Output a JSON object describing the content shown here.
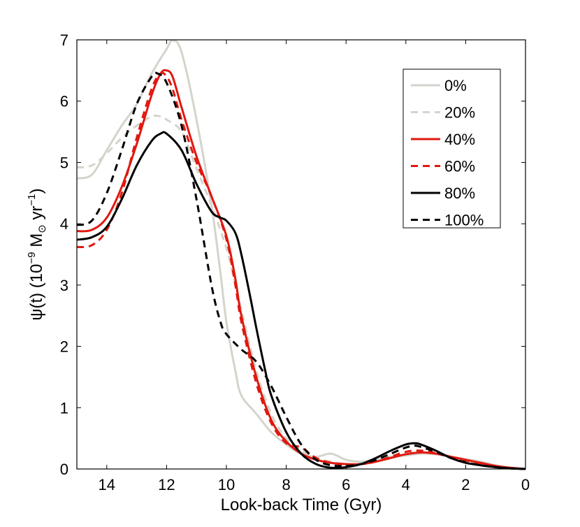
{
  "chart_data": {
    "type": "line",
    "title": "",
    "xlabel": "Look-back Time (Gyr)",
    "ylabel_parts": {
      "psi": "ψ(t) (10",
      "exp1": "−9",
      "mid": " M",
      "sun": "⊙",
      "unit": " yr",
      "exp2": "−1",
      "close": ")"
    },
    "xlim": [
      15,
      0
    ],
    "ylim": [
      0,
      7
    ],
    "x_reversed": true,
    "xticks": [
      14,
      12,
      10,
      8,
      6,
      4,
      2,
      0
    ],
    "yticks": [
      0,
      1,
      2,
      3,
      4,
      5,
      6,
      7
    ],
    "legend_position": "top-right",
    "series": [
      {
        "name": "0%",
        "color": "#d4d4cc",
        "dash": "solid",
        "points": [
          [
            15,
            4.74
          ],
          [
            14.5,
            4.8
          ],
          [
            14,
            5.2
          ],
          [
            13.5,
            5.6
          ],
          [
            13,
            5.95
          ],
          [
            12.5,
            6.45
          ],
          [
            12,
            6.85
          ],
          [
            11.8,
            6.99
          ],
          [
            11.5,
            6.8
          ],
          [
            11,
            5.7
          ],
          [
            10.5,
            4.3
          ],
          [
            10.2,
            3.2
          ],
          [
            10,
            2.4
          ],
          [
            9.7,
            1.6
          ],
          [
            9.5,
            1.2
          ],
          [
            9,
            0.9
          ],
          [
            8.5,
            0.6
          ],
          [
            8,
            0.4
          ],
          [
            7.5,
            0.25
          ],
          [
            7,
            0.2
          ],
          [
            6.5,
            0.25
          ],
          [
            6,
            0.15
          ],
          [
            5.5,
            0.12
          ],
          [
            5,
            0.16
          ],
          [
            4.5,
            0.2
          ],
          [
            4,
            0.22
          ],
          [
            3.5,
            0.25
          ],
          [
            3,
            0.24
          ],
          [
            2.5,
            0.2
          ],
          [
            2,
            0.16
          ],
          [
            1.5,
            0.12
          ],
          [
            1,
            0.06
          ],
          [
            0.5,
            0.02
          ],
          [
            0,
            0.0
          ]
        ]
      },
      {
        "name": "20%",
        "color": "#d4d4cc",
        "dash": "dashed",
        "points": [
          [
            15,
            4.92
          ],
          [
            14.5,
            4.95
          ],
          [
            14,
            5.15
          ],
          [
            13.5,
            5.4
          ],
          [
            13,
            5.6
          ],
          [
            12.5,
            5.75
          ],
          [
            12.2,
            5.75
          ],
          [
            12,
            5.7
          ],
          [
            11.5,
            5.5
          ],
          [
            11,
            4.9
          ],
          [
            10.5,
            4.3
          ],
          [
            10,
            3.6
          ],
          [
            9.7,
            3.0
          ],
          [
            9.5,
            2.6
          ],
          [
            9,
            1.6
          ],
          [
            8.5,
            0.9
          ],
          [
            8,
            0.5
          ],
          [
            7.5,
            0.3
          ],
          [
            7,
            0.18
          ],
          [
            6.5,
            0.12
          ],
          [
            6,
            0.08
          ],
          [
            5.5,
            0.08
          ],
          [
            5,
            0.12
          ],
          [
            4.5,
            0.18
          ],
          [
            4,
            0.25
          ],
          [
            3.5,
            0.27
          ],
          [
            3,
            0.24
          ],
          [
            2.5,
            0.2
          ],
          [
            2,
            0.15
          ],
          [
            1.5,
            0.1
          ],
          [
            1,
            0.05
          ],
          [
            0.5,
            0.02
          ],
          [
            0,
            0.0
          ]
        ]
      },
      {
        "name": "40%",
        "color": "#e0180f",
        "dash": "solid",
        "points": [
          [
            15,
            3.88
          ],
          [
            14.5,
            3.9
          ],
          [
            14,
            4.1
          ],
          [
            13.5,
            4.6
          ],
          [
            13,
            5.3
          ],
          [
            12.5,
            6.1
          ],
          [
            12.2,
            6.45
          ],
          [
            12,
            6.5
          ],
          [
            11.8,
            6.4
          ],
          [
            11.5,
            5.9
          ],
          [
            11,
            5.1
          ],
          [
            10.5,
            4.45
          ],
          [
            10,
            3.8
          ],
          [
            9.7,
            3.1
          ],
          [
            9.5,
            2.5
          ],
          [
            9,
            1.5
          ],
          [
            8.5,
            0.8
          ],
          [
            8,
            0.45
          ],
          [
            7.5,
            0.25
          ],
          [
            7,
            0.15
          ],
          [
            6.5,
            0.1
          ],
          [
            6,
            0.08
          ],
          [
            5.5,
            0.08
          ],
          [
            5,
            0.12
          ],
          [
            4.5,
            0.18
          ],
          [
            4,
            0.24
          ],
          [
            3.5,
            0.27
          ],
          [
            3,
            0.25
          ],
          [
            2.5,
            0.2
          ],
          [
            2,
            0.15
          ],
          [
            1.5,
            0.1
          ],
          [
            1,
            0.05
          ],
          [
            0.5,
            0.02
          ],
          [
            0,
            0.0
          ]
        ]
      },
      {
        "name": "60%",
        "color": "#e0180f",
        "dash": "dashed",
        "points": [
          [
            15,
            3.62
          ],
          [
            14.5,
            3.65
          ],
          [
            14,
            3.9
          ],
          [
            13.5,
            4.5
          ],
          [
            13,
            5.4
          ],
          [
            12.5,
            6.2
          ],
          [
            12.2,
            6.45
          ],
          [
            12,
            6.4
          ],
          [
            11.8,
            6.2
          ],
          [
            11.5,
            5.7
          ],
          [
            11,
            5.0
          ],
          [
            10.5,
            4.45
          ],
          [
            10,
            3.75
          ],
          [
            9.7,
            3.0
          ],
          [
            9.5,
            2.4
          ],
          [
            9,
            1.4
          ],
          [
            8.5,
            0.75
          ],
          [
            8,
            0.42
          ],
          [
            7.5,
            0.35
          ],
          [
            7,
            0.18
          ],
          [
            6.5,
            0.1
          ],
          [
            6,
            0.07
          ],
          [
            5.5,
            0.08
          ],
          [
            5,
            0.12
          ],
          [
            4.5,
            0.2
          ],
          [
            4,
            0.28
          ],
          [
            3.5,
            0.3
          ],
          [
            3,
            0.26
          ],
          [
            2.5,
            0.2
          ],
          [
            2,
            0.14
          ],
          [
            1.5,
            0.09
          ],
          [
            1,
            0.04
          ],
          [
            0.5,
            0.01
          ],
          [
            0,
            0.0
          ]
        ]
      },
      {
        "name": "80%",
        "color": "#000000",
        "dash": "solid",
        "points": [
          [
            15,
            3.74
          ],
          [
            14.5,
            3.78
          ],
          [
            14,
            3.95
          ],
          [
            13.5,
            4.4
          ],
          [
            13,
            4.95
          ],
          [
            12.5,
            5.35
          ],
          [
            12.2,
            5.47
          ],
          [
            12,
            5.47
          ],
          [
            11.5,
            5.2
          ],
          [
            11,
            4.65
          ],
          [
            10.5,
            4.2
          ],
          [
            10.2,
            4.1
          ],
          [
            10,
            4.05
          ],
          [
            9.7,
            3.85
          ],
          [
            9.5,
            3.5
          ],
          [
            9.2,
            2.8
          ],
          [
            9,
            2.3
          ],
          [
            8.7,
            1.6
          ],
          [
            8.5,
            1.2
          ],
          [
            8,
            0.6
          ],
          [
            7.5,
            0.25
          ],
          [
            7,
            0.08
          ],
          [
            6.5,
            0.02
          ],
          [
            6,
            0.03
          ],
          [
            5.5,
            0.08
          ],
          [
            5,
            0.18
          ],
          [
            4.5,
            0.3
          ],
          [
            4,
            0.4
          ],
          [
            3.7,
            0.42
          ],
          [
            3.5,
            0.4
          ],
          [
            3,
            0.3
          ],
          [
            2.5,
            0.18
          ],
          [
            2,
            0.1
          ],
          [
            1.5,
            0.06
          ],
          [
            1,
            0.03
          ],
          [
            0.5,
            0.01
          ],
          [
            0,
            0.0
          ]
        ]
      },
      {
        "name": "100%",
        "color": "#000000",
        "dash": "dashed",
        "points": [
          [
            15,
            3.98
          ],
          [
            14.5,
            4.05
          ],
          [
            14,
            4.5
          ],
          [
            13.5,
            5.2
          ],
          [
            13,
            5.95
          ],
          [
            12.5,
            6.4
          ],
          [
            12.3,
            6.45
          ],
          [
            12,
            6.3
          ],
          [
            11.5,
            5.6
          ],
          [
            11,
            4.4
          ],
          [
            10.5,
            3.0
          ],
          [
            10.2,
            2.4
          ],
          [
            10,
            2.2
          ],
          [
            9.5,
            1.95
          ],
          [
            9,
            1.75
          ],
          [
            8.5,
            1.35
          ],
          [
            8,
            0.85
          ],
          [
            7.5,
            0.4
          ],
          [
            7,
            0.15
          ],
          [
            6.5,
            0.06
          ],
          [
            6,
            0.05
          ],
          [
            5.5,
            0.08
          ],
          [
            5,
            0.15
          ],
          [
            4.5,
            0.25
          ],
          [
            4,
            0.35
          ],
          [
            3.7,
            0.38
          ],
          [
            3.5,
            0.36
          ],
          [
            3,
            0.28
          ],
          [
            2.5,
            0.18
          ],
          [
            2,
            0.11
          ],
          [
            1.5,
            0.06
          ],
          [
            1,
            0.03
          ],
          [
            0.5,
            0.01
          ],
          [
            0,
            0.0
          ]
        ]
      }
    ]
  }
}
